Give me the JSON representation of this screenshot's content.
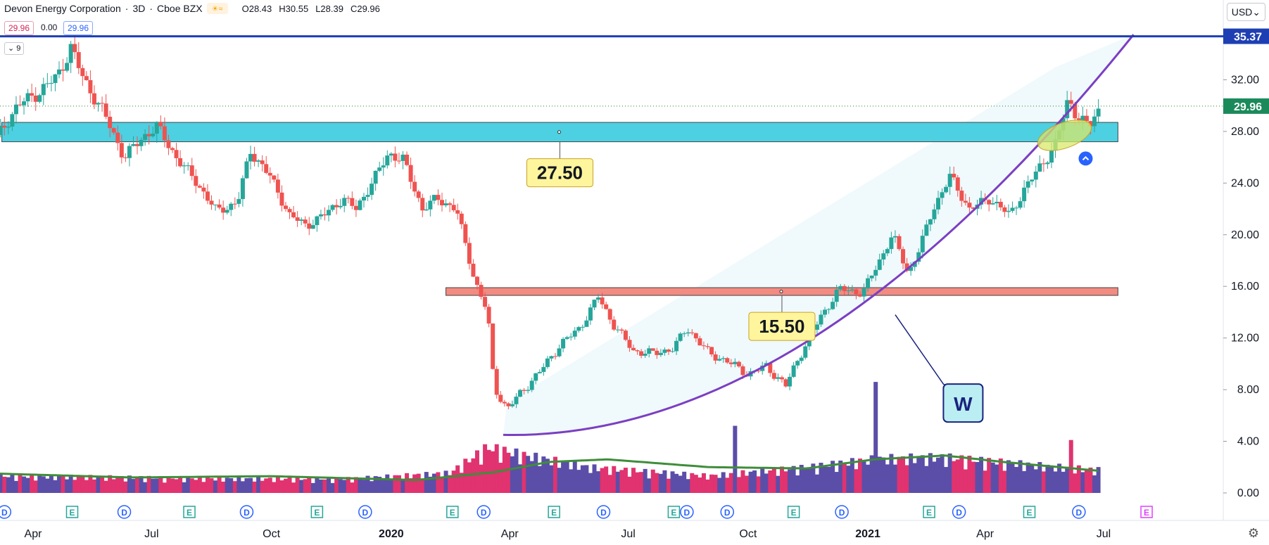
{
  "header": {
    "title": "Devon Energy Corporation",
    "interval": "3D",
    "exchange": "Cboe BZX",
    "open": "O28.43",
    "high": "H30.55",
    "low": "L28.39",
    "close": "C29.96",
    "bid": "29.96",
    "spread": "0.00",
    "ask": "29.96",
    "indicator_count": "9",
    "currency": "USD"
  },
  "chart_data": {
    "type": "candlestick",
    "title": "",
    "yaxis_ticks": [
      0,
      4,
      8,
      12,
      16,
      20,
      24,
      28,
      32
    ],
    "yaxis_labels": [
      "0.00",
      "4.00",
      "8.00",
      "12.00",
      "16.00",
      "20.00",
      "24.00",
      "28.00",
      "32.00"
    ],
    "ylim": [
      -0.6,
      36.0
    ],
    "xaxis_labels": [
      {
        "t": "2019-04-01",
        "text": "Apr"
      },
      {
        "t": "2019-07-01",
        "text": "Jul"
      },
      {
        "t": "2019-10-01",
        "text": "Oct"
      },
      {
        "t": "2020-01-01",
        "text": "2020"
      },
      {
        "t": "2020-04-01",
        "text": "Apr"
      },
      {
        "t": "2020-07-01",
        "text": "Jul"
      },
      {
        "t": "2020-10-01",
        "text": "Oct"
      },
      {
        "t": "2021-01-01",
        "text": "2021"
      },
      {
        "t": "2021-04-01",
        "text": "Apr"
      },
      {
        "t": "2021-07-01",
        "text": "Jul"
      }
    ],
    "price_keypoints": [
      [
        "2019-03-04",
        27.5
      ],
      [
        "2019-03-20",
        30.0
      ],
      [
        "2019-04-05",
        31.0
      ],
      [
        "2019-04-20",
        32.3
      ],
      [
        "2019-04-30",
        34.5
      ],
      [
        "2019-05-10",
        32.0
      ],
      [
        "2019-05-25",
        29.5
      ],
      [
        "2019-06-10",
        26.0
      ],
      [
        "2019-06-25",
        27.6
      ],
      [
        "2019-07-05",
        28.4
      ],
      [
        "2019-07-20",
        26.0
      ],
      [
        "2019-08-05",
        24.0
      ],
      [
        "2019-08-20",
        21.8
      ],
      [
        "2019-09-05",
        22.5
      ],
      [
        "2019-09-15",
        26.5
      ],
      [
        "2019-09-30",
        24.5
      ],
      [
        "2019-10-15",
        21.5
      ],
      [
        "2019-10-28",
        20.7
      ],
      [
        "2019-11-10",
        21.5
      ],
      [
        "2019-11-25",
        22.8
      ],
      [
        "2019-12-05",
        22.0
      ],
      [
        "2019-12-20",
        24.5
      ],
      [
        "2019-12-30",
        26.3
      ],
      [
        "2020-01-10",
        25.8
      ],
      [
        "2020-01-25",
        22.0
      ],
      [
        "2020-02-05",
        22.8
      ],
      [
        "2020-02-20",
        22.0
      ],
      [
        "2020-03-05",
        16.5
      ],
      [
        "2020-03-15",
        14.0
      ],
      [
        "2020-03-20",
        8.2
      ],
      [
        "2020-03-30",
        6.5
      ],
      [
        "2020-04-10",
        7.8
      ],
      [
        "2020-04-25",
        9.5
      ],
      [
        "2020-05-10",
        11.5
      ],
      [
        "2020-05-25",
        12.8
      ],
      [
        "2020-06-08",
        15.2
      ],
      [
        "2020-06-20",
        13.0
      ],
      [
        "2020-07-05",
        11.0
      ],
      [
        "2020-07-20",
        10.8
      ],
      [
        "2020-08-05",
        11.2
      ],
      [
        "2020-08-15",
        12.8
      ],
      [
        "2020-09-01",
        10.8
      ],
      [
        "2020-09-15",
        10.2
      ],
      [
        "2020-10-01",
        9.2
      ],
      [
        "2020-10-15",
        9.8
      ],
      [
        "2020-10-30",
        8.3
      ],
      [
        "2020-11-09",
        10.5
      ],
      [
        "2020-11-25",
        13.5
      ],
      [
        "2020-12-10",
        15.8
      ],
      [
        "2020-12-28",
        15.5
      ],
      [
        "2021-01-10",
        18.0
      ],
      [
        "2021-01-20",
        20.0
      ],
      [
        "2021-02-01",
        17.0
      ],
      [
        "2021-02-10",
        19.0
      ],
      [
        "2021-02-20",
        22.0
      ],
      [
        "2021-03-05",
        24.5
      ],
      [
        "2021-03-20",
        22.0
      ],
      [
        "2021-04-05",
        22.8
      ],
      [
        "2021-04-20",
        21.5
      ],
      [
        "2021-05-01",
        23.5
      ],
      [
        "2021-05-15",
        25.5
      ],
      [
        "2021-05-25",
        27.0
      ],
      [
        "2021-06-04",
        30.5
      ],
      [
        "2021-06-12",
        29.0
      ],
      [
        "2021-06-20",
        28.4
      ],
      [
        "2021-06-29",
        29.96
      ]
    ],
    "volume_keypoints": [
      [
        "2019-03-04",
        1.2
      ],
      [
        "2019-06-01",
        1.1
      ],
      [
        "2019-09-01",
        1.0
      ],
      [
        "2019-12-01",
        1.0
      ],
      [
        "2020-02-15",
        1.4
      ],
      [
        "2020-03-15",
        3.2
      ],
      [
        "2020-04-15",
        2.6
      ],
      [
        "2020-06-01",
        1.8
      ],
      [
        "2020-09-01",
        1.2
      ],
      [
        "2020-11-15",
        1.8
      ],
      [
        "2021-01-10",
        2.4
      ],
      [
        "2021-03-01",
        2.5
      ],
      [
        "2021-05-15",
        1.9
      ],
      [
        "2021-06-29",
        1.6
      ]
    ],
    "volume_spikes": [
      [
        "2020-09-21",
        5.2
      ],
      [
        "2021-01-06",
        8.6
      ],
      [
        "2021-06-07",
        4.1
      ]
    ],
    "volume_ma_keypoints": [
      [
        "2019-03-04",
        1.5
      ],
      [
        "2019-06-15",
        1.2
      ],
      [
        "2019-10-01",
        1.3
      ],
      [
        "2020-01-20",
        1.0
      ],
      [
        "2020-03-20",
        1.6
      ],
      [
        "2020-05-01",
        2.4
      ],
      [
        "2020-06-15",
        2.6
      ],
      [
        "2020-09-01",
        2.0
      ],
      [
        "2020-11-15",
        1.9
      ],
      [
        "2021-01-06",
        2.6
      ],
      [
        "2021-03-01",
        2.9
      ],
      [
        "2021-04-15",
        2.4
      ],
      [
        "2021-06-29",
        1.7
      ]
    ],
    "volume_bar_scale": 0.22,
    "last_price": 29.96,
    "last_price_label": "29.96",
    "resistance_line": {
      "value": 35.37,
      "label": "35.37"
    },
    "zones": [
      {
        "low": 27.2,
        "high": 28.7,
        "start": "2019-03-08",
        "end": "2021-07-12",
        "label": "27.50",
        "color": "#4dd0e1"
      },
      {
        "low": 15.3,
        "high": 15.9,
        "start": "2020-02-12",
        "end": "2021-07-12",
        "label": "15.50",
        "color": "#f28b82"
      }
    ],
    "curve": {
      "start": [
        "2020-03-27",
        4.5
      ],
      "ctrl": [
        "2020-11-15",
        4.0
      ],
      "end": [
        "2021-07-24",
        35.5
      ],
      "label": "W"
    },
    "highlight": {
      "t": "2021-06-01",
      "value": 27.7
    },
    "events": [
      {
        "t": "2019-03-10",
        "text": "D"
      },
      {
        "t": "2019-05-01",
        "text": "E"
      },
      {
        "t": "2019-06-10",
        "text": "D"
      },
      {
        "t": "2019-07-30",
        "text": "E"
      },
      {
        "t": "2019-09-12",
        "text": "D"
      },
      {
        "t": "2019-11-05",
        "text": "E"
      },
      {
        "t": "2019-12-12",
        "text": "D"
      },
      {
        "t": "2020-02-17",
        "text": "E"
      },
      {
        "t": "2020-03-12",
        "text": "D"
      },
      {
        "t": "2020-05-05",
        "text": "E"
      },
      {
        "t": "2020-06-12",
        "text": "D"
      },
      {
        "t": "2020-08-05",
        "text": "E"
      },
      {
        "t": "2020-08-15",
        "text": "D"
      },
      {
        "t": "2020-09-15",
        "text": "D"
      },
      {
        "t": "2020-11-05",
        "text": "E"
      },
      {
        "t": "2020-12-12",
        "text": "D"
      },
      {
        "t": "2021-02-17",
        "text": "E"
      },
      {
        "t": "2021-03-12",
        "text": "D"
      },
      {
        "t": "2021-05-05",
        "text": "E"
      },
      {
        "t": "2021-06-12",
        "text": "D"
      },
      {
        "t": "2021-08-03",
        "text": "E"
      }
    ],
    "colors": {
      "up": "#26a69a",
      "down": "#ef5350",
      "vol_up": "#5b4ea8",
      "vol_down": "#e0336f",
      "vol_ma": "#3f8d3a",
      "curve": "#7b3fc2",
      "line": "#1e3fb3",
      "zone_border": "#444444",
      "callout_bg": "#fff59d",
      "callout_border": "#c9a227"
    }
  }
}
